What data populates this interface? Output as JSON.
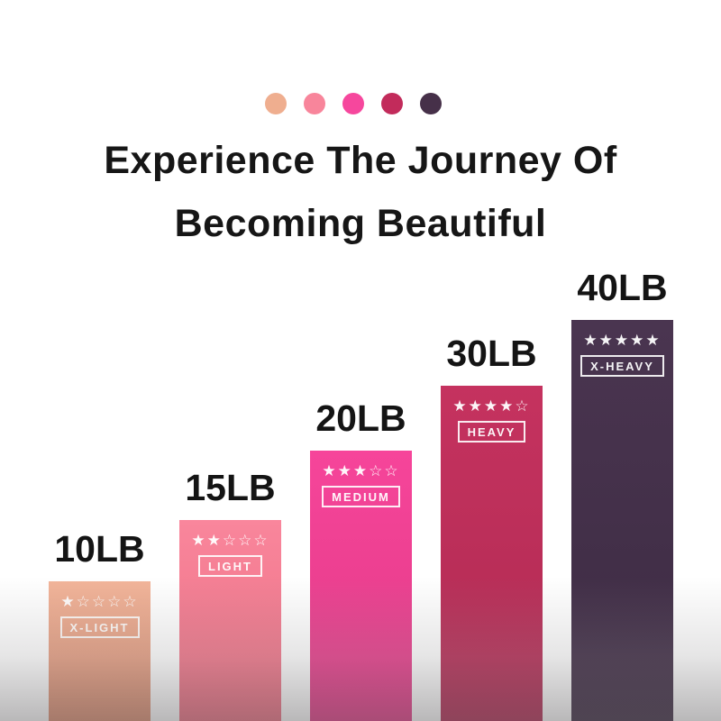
{
  "palette_dots": {
    "colors": [
      "#EFAE8F",
      "#F8859B",
      "#F6479D",
      "#C22B5B",
      "#463049"
    ]
  },
  "title": {
    "line1": "Experience The Journey Of",
    "line2": "Becoming Beautiful",
    "color": "#161616"
  },
  "bands": [
    {
      "weight": "10LB",
      "rating": 1,
      "stars": "★☆☆☆☆",
      "level": "X-LIGHT",
      "color_top": "#F2B499",
      "color_bottom": "#DC8E71"
    },
    {
      "weight": "15LB",
      "rating": 2,
      "stars": "★★☆☆☆",
      "level": "LIGHT",
      "color_top": "#F9869C",
      "color_bottom": "#EC6F82"
    },
    {
      "weight": "20LB",
      "rating": 3,
      "stars": "★★★☆☆",
      "level": "MEDIUM",
      "color_top": "#F6459A",
      "color_bottom": "#E23A86"
    },
    {
      "weight": "30LB",
      "rating": 4,
      "stars": "★★★★☆",
      "level": "HEAVY",
      "color_top": "#C5325F",
      "color_bottom": "#B12B53"
    },
    {
      "weight": "40LB",
      "rating": 5,
      "stars": "★★★★★",
      "level": "X-HEAVY",
      "color_top": "#4A3550",
      "color_bottom": "#3D2B43"
    }
  ],
  "chart_data": {
    "type": "bar",
    "title": "Experience The Journey Of Becoming Beautiful",
    "categories": [
      "10LB",
      "15LB",
      "20LB",
      "30LB",
      "40LB"
    ],
    "series": [
      {
        "name": "star_rating",
        "values": [
          1,
          2,
          3,
          4,
          5
        ]
      },
      {
        "name": "bar_height_px",
        "values": [
          155,
          223,
          300,
          372,
          445
        ]
      }
    ],
    "bar_labels": [
      "X-LIGHT",
      "LIGHT",
      "MEDIUM",
      "HEAVY",
      "X-HEAVY"
    ],
    "bar_colors": [
      "#EFAE8F",
      "#F8859B",
      "#F6479D",
      "#C22B5B",
      "#463049"
    ],
    "xlabel": "",
    "ylabel": "",
    "legend": "none",
    "grid": false,
    "axes": "hidden"
  }
}
